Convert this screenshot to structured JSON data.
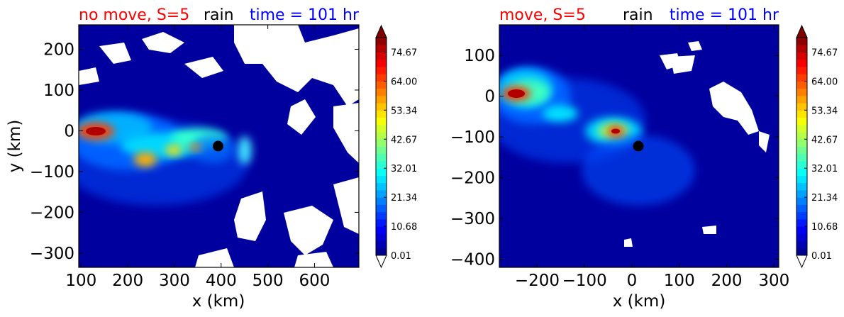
{
  "colorbar": {
    "tick_labels": [
      "0.01",
      "10.68",
      "21.34",
      "32.01",
      "42.67",
      "53.34",
      "64.00",
      "74.67"
    ],
    "min": 0.01,
    "max": 80.0,
    "extend": "both"
  },
  "chart_data": [
    {
      "type": "heatmap",
      "title_parts": {
        "case": "no move, S=5",
        "field": "rain",
        "time": "time = 101 hr"
      },
      "xlabel": "x (km)",
      "ylabel": "y (km)",
      "xlim": [
        95,
        695
      ],
      "ylim": [
        -335,
        260
      ],
      "xticks": [
        100,
        200,
        300,
        400,
        500,
        600
      ],
      "xtick_labels": [
        "100",
        "200",
        "300",
        "400",
        "500",
        "600"
      ],
      "yticks": [
        200,
        100,
        0,
        -100,
        -200,
        -300
      ],
      "ytick_labels": [
        "200",
        "100",
        "0",
        "−100",
        "−200",
        "−300"
      ],
      "center_marker": {
        "x": 398,
        "y": -40
      },
      "rain_maxima": [
        {
          "x": 140,
          "y": -5,
          "value": 80
        },
        {
          "x": 230,
          "y": -80,
          "value": 55
        },
        {
          "x": 290,
          "y": -50,
          "value": 48
        },
        {
          "x": 450,
          "y": -55,
          "value": 30
        }
      ],
      "no_rain_regions": "white areas in upper right and lower right"
    },
    {
      "type": "heatmap",
      "title_parts": {
        "case": "move, S=5",
        "field": "rain",
        "time": "time = 101 hr"
      },
      "xlabel": "x (km)",
      "ylabel": "",
      "xlim": [
        -280,
        310
      ],
      "ylim": [
        -420,
        175
      ],
      "xticks": [
        -200,
        -100,
        0,
        100,
        200,
        300
      ],
      "xtick_labels": [
        "−200",
        "−100",
        "0",
        "100",
        "200",
        "300"
      ],
      "yticks": [
        100,
        0,
        -100,
        -200,
        -300,
        -400
      ],
      "ytick_labels": [
        "100",
        "0",
        "−100",
        "−200",
        "−300",
        "−400"
      ],
      "center_marker": {
        "x": 10,
        "y": -120
      },
      "rain_maxima": [
        {
          "x": -235,
          "y": 5,
          "value": 80
        },
        {
          "x": -40,
          "y": -90,
          "value": 70
        },
        {
          "x": -150,
          "y": -40,
          "value": 40
        }
      ],
      "no_rain_regions": "small white patches on right side"
    }
  ]
}
